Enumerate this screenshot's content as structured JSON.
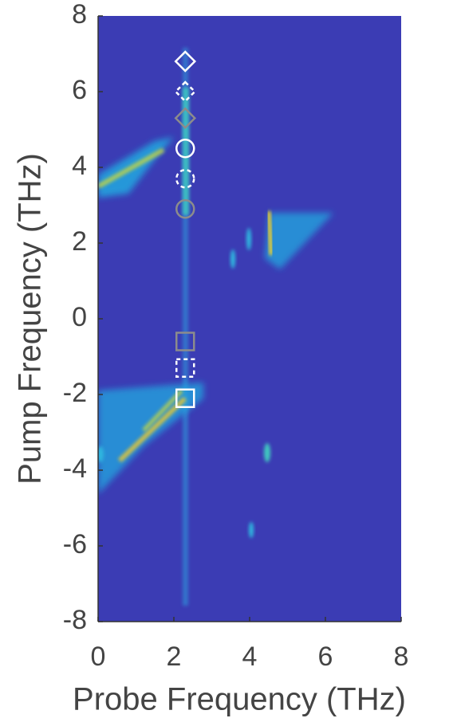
{
  "chart_data": {
    "type": "scatter",
    "xlabel": "Probe Frequency (THz)",
    "ylabel": "Pump Frequency (THz)",
    "xlim": [
      0,
      8
    ],
    "ylim": [
      -8,
      8
    ],
    "xticks": [
      0,
      2,
      4,
      6,
      8
    ],
    "yticks": [
      -8,
      -6,
      -4,
      -2,
      0,
      2,
      4,
      6,
      8
    ],
    "grid": false,
    "background": "#3b3cb4",
    "series": [
      {
        "color": "#ffffff",
        "dashed": false,
        "markers": [
          "diamond",
          "circle",
          "square"
        ],
        "x": [
          2.3,
          2.3,
          2.3
        ],
        "y": [
          6.8,
          4.5,
          -2.1
        ]
      },
      {
        "color": "#ffffff",
        "dashed": true,
        "markers": [
          "diamond",
          "circle",
          "square"
        ],
        "x": [
          2.3,
          2.3,
          2.3
        ],
        "y": [
          6.0,
          3.7,
          -1.3
        ]
      },
      {
        "color": "#8c8c8c",
        "dashed": false,
        "markers": [
          "diamond",
          "circle",
          "square"
        ],
        "x": [
          2.3,
          2.3,
          2.3
        ],
        "y": [
          5.3,
          2.9,
          -0.6
        ]
      }
    ]
  }
}
